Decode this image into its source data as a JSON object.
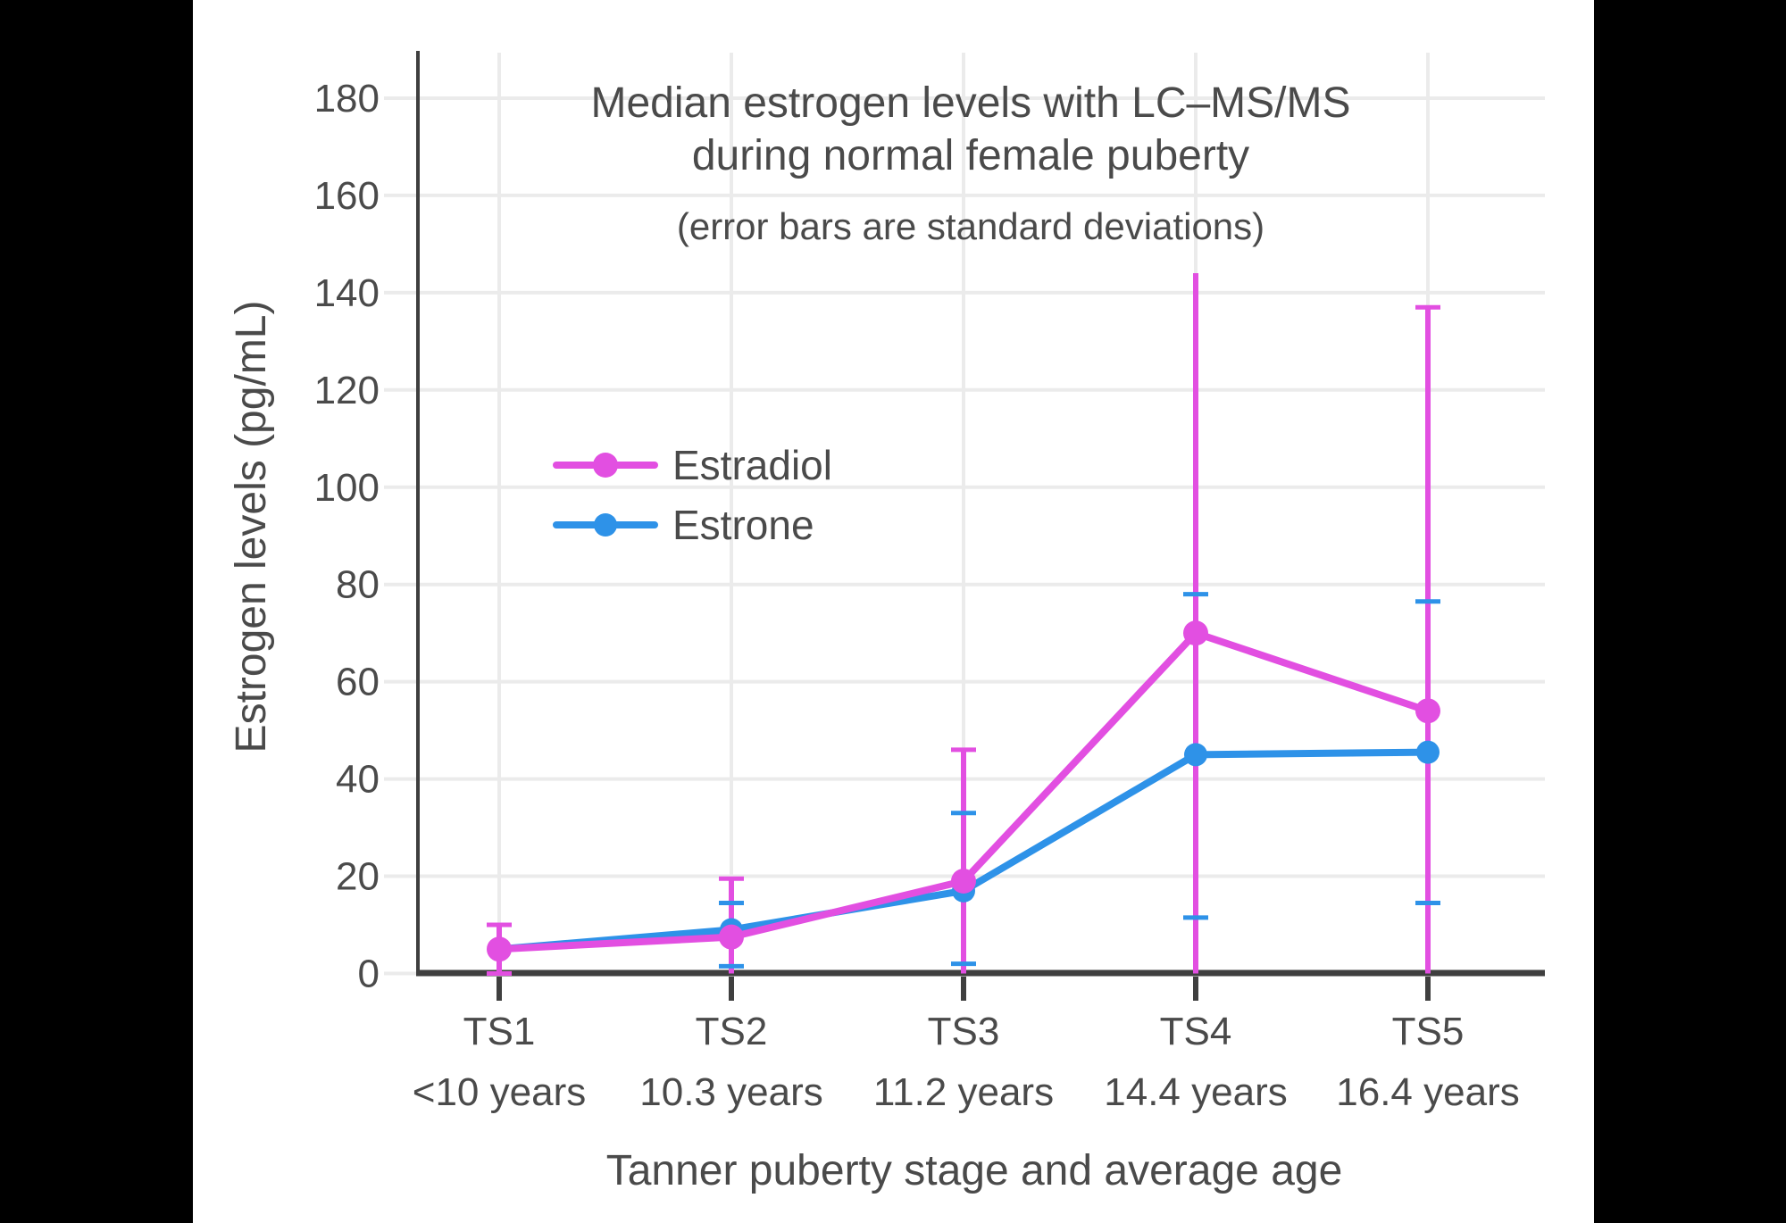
{
  "page": {
    "background_color": "#000000",
    "panel_color": "#ffffff"
  },
  "chart_data": {
    "type": "line",
    "title_line1": "Median estrogen levels with LC–MS/MS",
    "title_line2": "during normal female puberty",
    "subtitle": "(error bars are standard deviations)",
    "ylabel": "Estrogen levels (pg/mL)",
    "xlabel": "Tanner puberty stage and average age",
    "yticks": [
      0,
      20,
      40,
      60,
      80,
      100,
      120,
      140,
      160,
      180
    ],
    "ylim": [
      0,
      189
    ],
    "grid": true,
    "legend_position": "inside-upper-left",
    "axis_color": "#3F3F3F",
    "grid_color": "#EBEBEB",
    "text_color": "#4A4A4A",
    "categories": [
      {
        "stage": "TS1",
        "age": "<10 years"
      },
      {
        "stage": "TS2",
        "age": "10.3 years"
      },
      {
        "stage": "TS3",
        "age": "11.2 years"
      },
      {
        "stage": "TS4",
        "age": "14.4 years"
      },
      {
        "stage": "TS5",
        "age": "16.4 years"
      }
    ],
    "series": [
      {
        "name": "Estradiol",
        "color": "#E24FE1",
        "values": [
          5,
          7.5,
          19,
          70,
          54
        ],
        "error_low": [
          0,
          0,
          0,
          0,
          0
        ],
        "error_high": [
          10,
          19.5,
          46,
          144,
          137
        ],
        "cap_low": [
          true,
          false,
          false,
          false,
          false
        ],
        "cap_high": [
          true,
          true,
          true,
          false,
          true
        ]
      },
      {
        "name": "Estrone",
        "color": "#2E92E8",
        "values": [
          5,
          9,
          17,
          45,
          45.5
        ],
        "error_low": [
          null,
          1.5,
          2,
          11.5,
          14.5
        ],
        "error_high": [
          null,
          14.5,
          33,
          78,
          76.5
        ],
        "cap_low": [
          false,
          true,
          true,
          true,
          true
        ],
        "cap_high": [
          false,
          true,
          true,
          true,
          true
        ]
      }
    ]
  }
}
